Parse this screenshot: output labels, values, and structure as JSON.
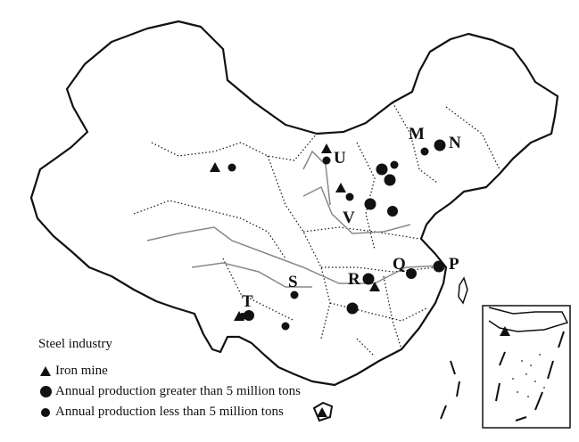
{
  "legend": {
    "title": "Steel industry",
    "items": [
      {
        "symbol": "triangle",
        "label": "Iron mine"
      },
      {
        "symbol": "large-circle",
        "label": "Annual production greater than 5 million tons"
      },
      {
        "symbol": "small-circle",
        "label": "Annual production less than 5 million tons"
      }
    ]
  },
  "site_labels": [
    "M",
    "N",
    "U",
    "V",
    "S",
    "R",
    "Q",
    "P",
    "T"
  ],
  "colors": {
    "marker": "#111111",
    "border": "#111111",
    "river": "#888888"
  }
}
